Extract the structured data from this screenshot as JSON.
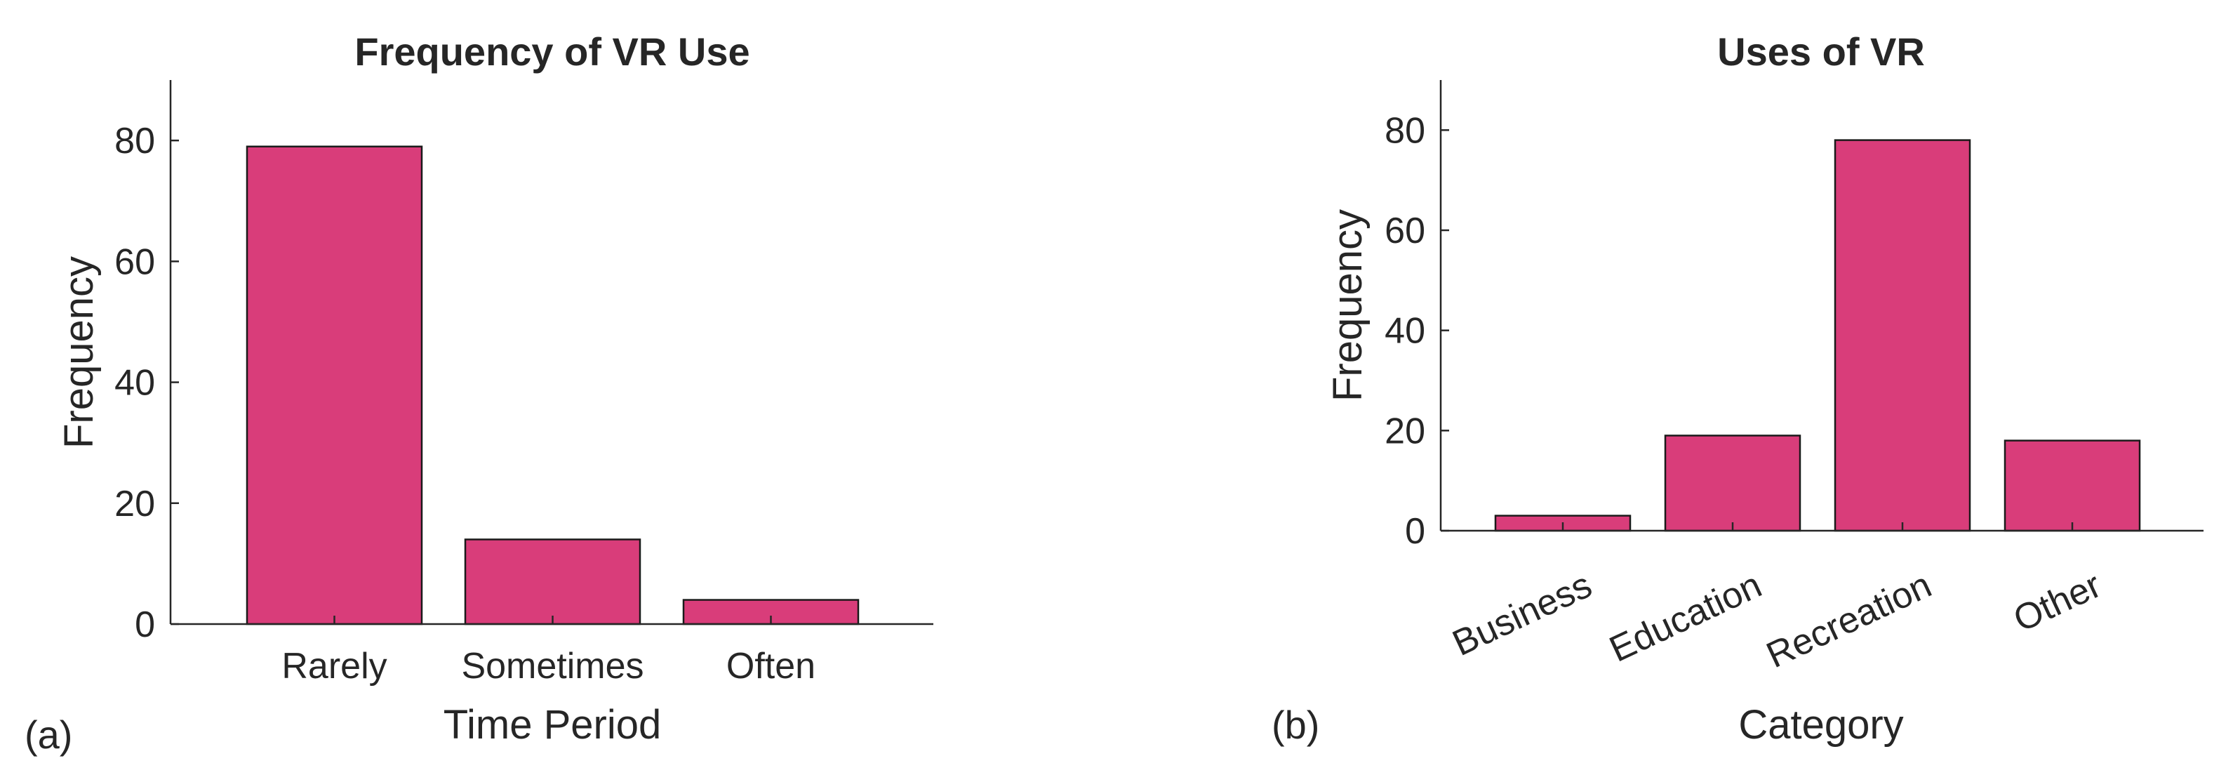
{
  "chart_data": [
    {
      "type": "bar",
      "panel_label": "(a)",
      "title": "Frequency of VR Use",
      "xlabel": "Time Period",
      "ylabel": "Frequency",
      "categories": [
        "Rarely",
        "Sometimes",
        "Often"
      ],
      "values": [
        79,
        14,
        4
      ],
      "ylim": [
        0,
        90
      ],
      "yticks": [
        0,
        20,
        40,
        60,
        80
      ],
      "bar_color": "#D93D7A",
      "grid": false,
      "xtick_rotation": 0
    },
    {
      "type": "bar",
      "panel_label": "(b)",
      "title": "Uses of VR",
      "xlabel": "Category",
      "ylabel": "Frequency",
      "categories": [
        "Business",
        "Education",
        "Recreation",
        "Other"
      ],
      "values": [
        3,
        19,
        78,
        18
      ],
      "ylim": [
        0,
        90
      ],
      "yticks": [
        0,
        20,
        40,
        60,
        80
      ],
      "bar_color": "#D93D7A",
      "grid": false,
      "xtick_rotation": -25
    }
  ]
}
